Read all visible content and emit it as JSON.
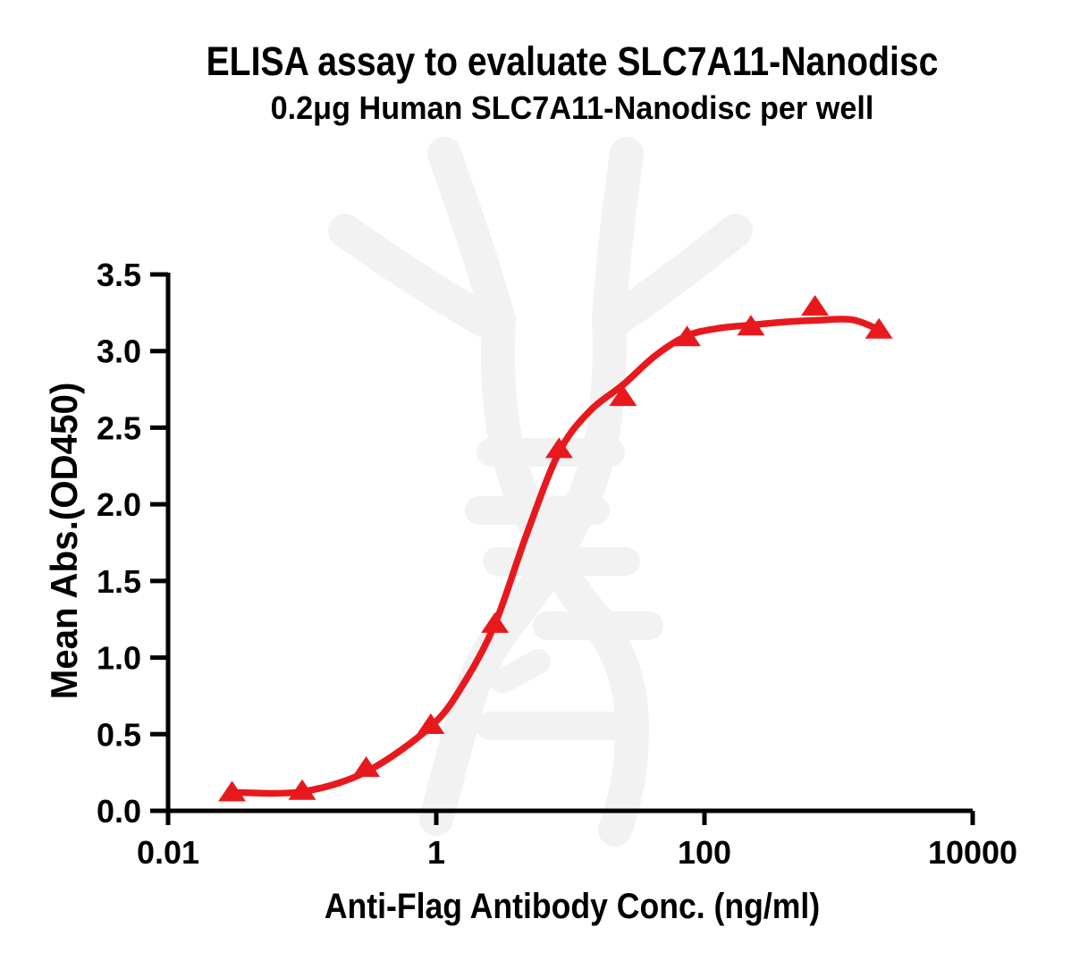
{
  "chart_data": {
    "type": "scatter",
    "title": "ELISA assay to evaluate SLC7A11-Nanodisc",
    "subtitle": "0.2μg Human SLC7A11-Nanodisc per well",
    "xlabel": "Anti-Flag Antibody Conc. (ng/ml)",
    "ylabel": "Mean Abs.(OD450)",
    "x_scale": "log10",
    "xlim": [
      0.01,
      10000
    ],
    "ylim": [
      0.0,
      3.5
    ],
    "x_ticks": [
      0.01,
      1,
      100,
      10000
    ],
    "x_tick_labels": [
      "0.01",
      "1",
      "100",
      "10000"
    ],
    "y_ticks": [
      0.0,
      0.5,
      1.0,
      1.5,
      2.0,
      2.5,
      3.0,
      3.5
    ],
    "y_tick_labels": [
      "0.0",
      "0.5",
      "1.0",
      "1.5",
      "2.0",
      "2.5",
      "3.0",
      "3.5"
    ],
    "grid": false,
    "legend": null,
    "series": [
      {
        "name": "Human SLC7A11-Nanodisc",
        "marker": "triangle-up",
        "color": "#e8191d",
        "x": [
          0.03,
          0.1,
          0.3,
          0.91,
          2.74,
          8.23,
          24.7,
          74.1,
          222,
          667,
          2000
        ],
        "y": [
          0.12,
          0.13,
          0.28,
          0.56,
          1.22,
          2.36,
          2.7,
          3.09,
          3.16,
          3.29,
          3.14
        ]
      }
    ],
    "fit_curve": {
      "model": "sigmoidal dose-response (4PL-like)",
      "color": "#e8191d",
      "bottom": 0.11,
      "top": 3.2,
      "anchors": [
        [
          0.03,
          0.12
        ],
        [
          0.1,
          0.125
        ],
        [
          0.3,
          0.255
        ],
        [
          0.91,
          0.55
        ],
        [
          1.6,
          0.83
        ],
        [
          2.74,
          1.22
        ],
        [
          4.7,
          1.8
        ],
        [
          8.23,
          2.34
        ],
        [
          14,
          2.61
        ],
        [
          24.7,
          2.78
        ],
        [
          43,
          2.97
        ],
        [
          74.1,
          3.1
        ],
        [
          130,
          3.15
        ],
        [
          222,
          3.17
        ],
        [
          400,
          3.19
        ],
        [
          667,
          3.2
        ],
        [
          1250,
          3.205
        ],
        [
          2000,
          3.14
        ]
      ]
    }
  },
  "colors": {
    "accent_red": "#e8191d",
    "text": "#000000",
    "axis": "#000000",
    "watermark_gray": "#f2f2f3",
    "background": "#ffffff"
  },
  "icons": {
    "watermark": "dna-helix-watermark-icon"
  }
}
